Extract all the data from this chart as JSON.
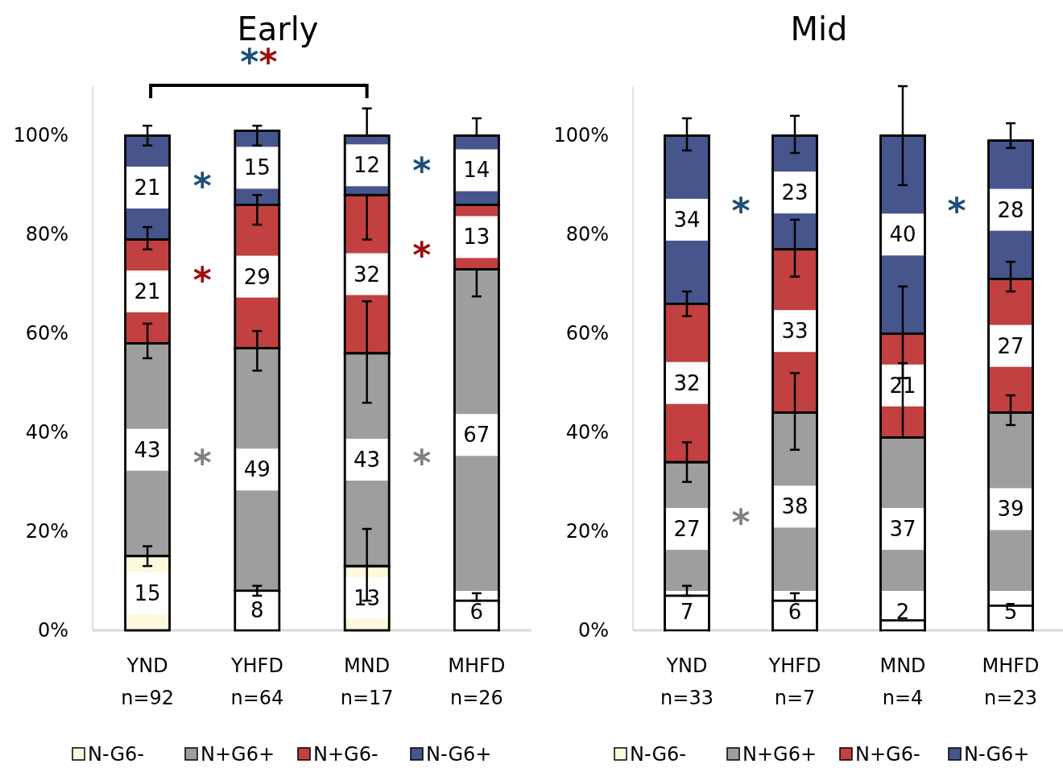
{
  "chart_data": [
    {
      "type": "bar",
      "stacked": true,
      "title": "Early",
      "categories": [
        "YND\nn=92",
        "YHFD\nn=64",
        "MND\nn=17",
        "MHFD\nn=26"
      ],
      "series": [
        {
          "name": "N-G6-",
          "color": "#fdf9dc",
          "values": [
            15,
            8,
            13,
            6
          ],
          "errors": [
            [
              13,
              17
            ],
            [
              7,
              9
            ],
            [
              6,
              20.5
            ],
            [
              6,
              7.5
            ]
          ]
        },
        {
          "name": "N+G6+",
          "color": "#9e9e9e",
          "values": [
            43,
            49,
            43,
            67
          ],
          "errors": [
            [
              55,
              62
            ],
            [
              52.5,
              60.5
            ],
            [
              46,
              66.5
            ],
            [
              67.5,
              73
            ]
          ]
        },
        {
          "name": "N+G6-",
          "color": "#c24040",
          "values": [
            21,
            29,
            32,
            13
          ],
          "errors": [
            [
              77,
              81.5
            ],
            [
              82,
              88
            ],
            [
              79,
              88
            ],
            null
          ]
        },
        {
          "name": "N-G6+",
          "color": "#46558c",
          "values": [
            21,
            15,
            12,
            14
          ],
          "errors": [
            [
              98,
              102
            ],
            [
              98,
              102
            ],
            [
              100,
              105.5
            ],
            [
              100,
              103.5
            ]
          ]
        }
      ],
      "ylim": [
        0,
        110
      ],
      "yticks": [
        {
          "value": 0,
          "label": "0%"
        },
        {
          "value": 20,
          "label": "20%"
        },
        {
          "value": 40,
          "label": "40%"
        },
        {
          "value": 60,
          "label": "60%"
        },
        {
          "value": 80,
          "label": "80%"
        },
        {
          "value": 100,
          "label": "100%"
        }
      ],
      "data_labels": true,
      "legend": "bottom",
      "grid": false,
      "annotations": [
        "**",
        "*",
        "*",
        "*",
        "*",
        "*",
        "*"
      ]
    },
    {
      "type": "bar",
      "stacked": true,
      "title": "Mid",
      "categories": [
        "YND\nn=33",
        "YHFD\nn=7",
        "MND\nn=4",
        "MHFD\nn=23"
      ],
      "series": [
        {
          "name": "N-G6-",
          "color": "#fdf9dc",
          "values": [
            7,
            6,
            2,
            5
          ],
          "errors": [
            [
              7,
              9
            ],
            [
              6,
              7.5
            ],
            null,
            null
          ]
        },
        {
          "name": "N+G6+",
          "color": "#9e9e9e",
          "values": [
            27,
            38,
            37,
            39
          ],
          "errors": [
            [
              30,
              38
            ],
            [
              36.5,
              52
            ],
            [
              39,
              54
            ],
            [
              41.5,
              47.5
            ]
          ]
        },
        {
          "name": "N+G6-",
          "color": "#c24040",
          "values": [
            32,
            33,
            21,
            27
          ],
          "errors": [
            [
              63.5,
              68.5
            ],
            [
              71.5,
              83
            ],
            [
              51,
              69.5
            ],
            [
              68.5,
              74.5
            ]
          ]
        },
        {
          "name": "N-G6+",
          "color": "#46558c",
          "values": [
            34,
            23,
            40,
            28
          ],
          "errors": [
            [
              97,
              103.5
            ],
            [
              96.5,
              104
            ],
            [
              90,
              110
            ],
            [
              97.5,
              102.5
            ]
          ]
        }
      ],
      "ylim": [
        0,
        110
      ],
      "yticks": [
        {
          "value": 0,
          "label": "0%"
        },
        {
          "value": 20,
          "label": "20%"
        },
        {
          "value": 40,
          "label": "40%"
        },
        {
          "value": 60,
          "label": "60%"
        },
        {
          "value": 80,
          "label": "80%"
        },
        {
          "value": 100,
          "label": "100%"
        }
      ],
      "data_labels": true,
      "legend": "bottom",
      "grid": false,
      "annotations": [
        "*",
        "*",
        "*"
      ]
    }
  ]
}
